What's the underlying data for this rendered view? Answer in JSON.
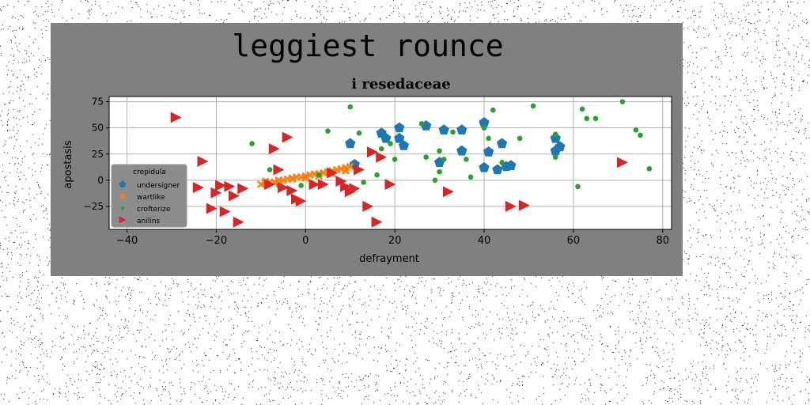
{
  "figure": {
    "suptitle": "leggiest rounce"
  },
  "chart_data": {
    "type": "scatter",
    "title": "i resedaceae",
    "xlabel": "defrayment",
    "ylabel": "apostasis",
    "xlim": [
      -44,
      82
    ],
    "ylim": [
      -47,
      80
    ],
    "xticks": [
      -40,
      -20,
      0,
      20,
      40,
      60,
      80
    ],
    "yticks": [
      -25,
      0,
      25,
      50,
      75
    ],
    "grid": true,
    "legend": {
      "title": "crepidula",
      "position": "center-left"
    },
    "series": [
      {
        "name": "undersigner",
        "marker": "pentagon",
        "color": "#1f77b4",
        "points": [
          [
            10,
            35
          ],
          [
            11,
            15
          ],
          [
            17,
            45
          ],
          [
            18,
            40
          ],
          [
            21,
            50
          ],
          [
            21,
            40
          ],
          [
            22,
            33
          ],
          [
            27,
            52
          ],
          [
            30,
            17
          ],
          [
            31,
            48
          ],
          [
            35,
            48
          ],
          [
            35,
            28
          ],
          [
            40,
            12
          ],
          [
            40,
            55
          ],
          [
            41,
            27
          ],
          [
            43,
            10
          ],
          [
            44,
            35
          ],
          [
            45,
            13
          ],
          [
            46,
            14
          ],
          [
            56,
            28
          ],
          [
            56,
            40
          ],
          [
            57,
            32
          ]
        ]
      },
      {
        "name": "wartlike",
        "marker": "x",
        "color": "#ff7f0e",
        "points": [
          [
            -10,
            -4
          ],
          [
            -9,
            -3
          ],
          [
            -8,
            -2
          ],
          [
            -7,
            -2
          ],
          [
            -6,
            -1
          ],
          [
            -5,
            0
          ],
          [
            -4,
            1
          ],
          [
            -3,
            2
          ],
          [
            -2,
            3
          ],
          [
            -1,
            3
          ],
          [
            0,
            4
          ],
          [
            1,
            5
          ],
          [
            2,
            6
          ],
          [
            3,
            6
          ],
          [
            4,
            7
          ],
          [
            5,
            8
          ],
          [
            6,
            9
          ],
          [
            7,
            10
          ],
          [
            8,
            11
          ],
          [
            9,
            12
          ],
          [
            10,
            13
          ],
          [
            -9,
            -1
          ],
          [
            -6,
            0
          ],
          [
            -3,
            1
          ],
          [
            0,
            2
          ],
          [
            3,
            4
          ],
          [
            6,
            6
          ],
          [
            9,
            9
          ]
        ]
      },
      {
        "name": "crofterize",
        "marker": "circle",
        "color": "#2ca02c",
        "points": [
          [
            -12,
            35
          ],
          [
            -8,
            10
          ],
          [
            -6,
            -5
          ],
          [
            -1,
            -5
          ],
          [
            3,
            5
          ],
          [
            5,
            47
          ],
          [
            10,
            70
          ],
          [
            12,
            45
          ],
          [
            13,
            -2
          ],
          [
            16,
            5
          ],
          [
            17,
            30
          ],
          [
            19,
            35
          ],
          [
            20,
            20
          ],
          [
            26,
            54
          ],
          [
            27,
            22
          ],
          [
            29,
            0
          ],
          [
            30,
            8
          ],
          [
            30,
            28
          ],
          [
            31,
            20
          ],
          [
            33,
            46
          ],
          [
            36,
            20
          ],
          [
            37,
            3
          ],
          [
            40,
            50
          ],
          [
            41,
            40
          ],
          [
            42,
            67
          ],
          [
            44,
            17
          ],
          [
            48,
            40
          ],
          [
            51,
            71
          ],
          [
            56,
            22
          ],
          [
            56,
            44
          ],
          [
            61,
            -6
          ],
          [
            62,
            68
          ],
          [
            63,
            59
          ],
          [
            65,
            59
          ],
          [
            71,
            75
          ],
          [
            74,
            48
          ],
          [
            75,
            43
          ],
          [
            77,
            11
          ]
        ]
      },
      {
        "name": "anilins",
        "marker": "triangle-right",
        "color": "#d62728",
        "points": [
          [
            -29,
            60
          ],
          [
            -23,
            18
          ],
          [
            -24,
            -7
          ],
          [
            -21,
            -27
          ],
          [
            -20,
            -12
          ],
          [
            -19,
            -5
          ],
          [
            -18,
            -30
          ],
          [
            -17,
            -6
          ],
          [
            -16,
            -15
          ],
          [
            -15,
            -40
          ],
          [
            -14,
            -8
          ],
          [
            -8,
            -4
          ],
          [
            -7,
            30
          ],
          [
            -6,
            10
          ],
          [
            -5,
            -7
          ],
          [
            -4,
            41
          ],
          [
            -3,
            -10
          ],
          [
            -2,
            -18
          ],
          [
            -1,
            -20
          ],
          [
            2,
            -4
          ],
          [
            4,
            -4
          ],
          [
            6,
            7
          ],
          [
            8,
            -1
          ],
          [
            9,
            -6
          ],
          [
            10,
            -11
          ],
          [
            11,
            -8
          ],
          [
            12,
            10
          ],
          [
            14,
            -25
          ],
          [
            15,
            27
          ],
          [
            16,
            -40
          ],
          [
            17,
            22
          ],
          [
            19,
            -4
          ],
          [
            32,
            -11
          ],
          [
            46,
            -25
          ],
          [
            49,
            -24
          ],
          [
            71,
            17
          ]
        ]
      }
    ]
  }
}
